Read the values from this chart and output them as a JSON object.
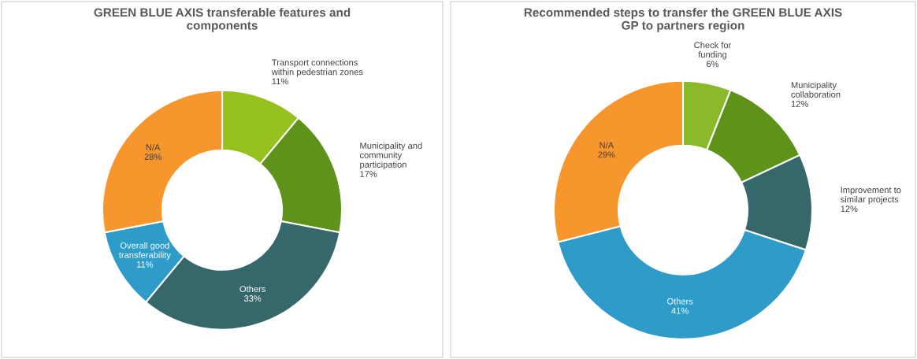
{
  "chart_data": [
    {
      "type": "donut",
      "title": "GREEN BLUE AXIS transferable features and\ncomponents",
      "categories": [
        "Transport connections\nwithin pedestrian zones",
        "Municipality and\ncommunity\nparticipation",
        "Others",
        "Overall good\ntransferability",
        "N/A"
      ],
      "values": [
        11,
        17,
        33,
        11,
        28
      ],
      "value_labels": [
        "11%",
        "17%",
        "33%",
        "11%",
        "28%"
      ],
      "colors": [
        "#97c11f",
        "#5e9219",
        "#35676b",
        "#2e9bc9",
        "#f7962c"
      ]
    },
    {
      "type": "donut",
      "title": "Recommended steps to transfer the GREEN BLUE AXIS\nGP to partners region",
      "categories": [
        "Check for\nfunding",
        "Municipality\ncollaboration",
        "Improvement to\nsimilar projects",
        "Others",
        "N/A"
      ],
      "values": [
        6,
        12,
        12,
        41,
        29
      ],
      "value_labels": [
        "6%",
        "12%",
        "12%",
        "41%",
        "29%"
      ],
      "colors": [
        "#8ab92b",
        "#5e9219",
        "#35676b",
        "#2e9bc9",
        "#f7962c"
      ]
    }
  ]
}
